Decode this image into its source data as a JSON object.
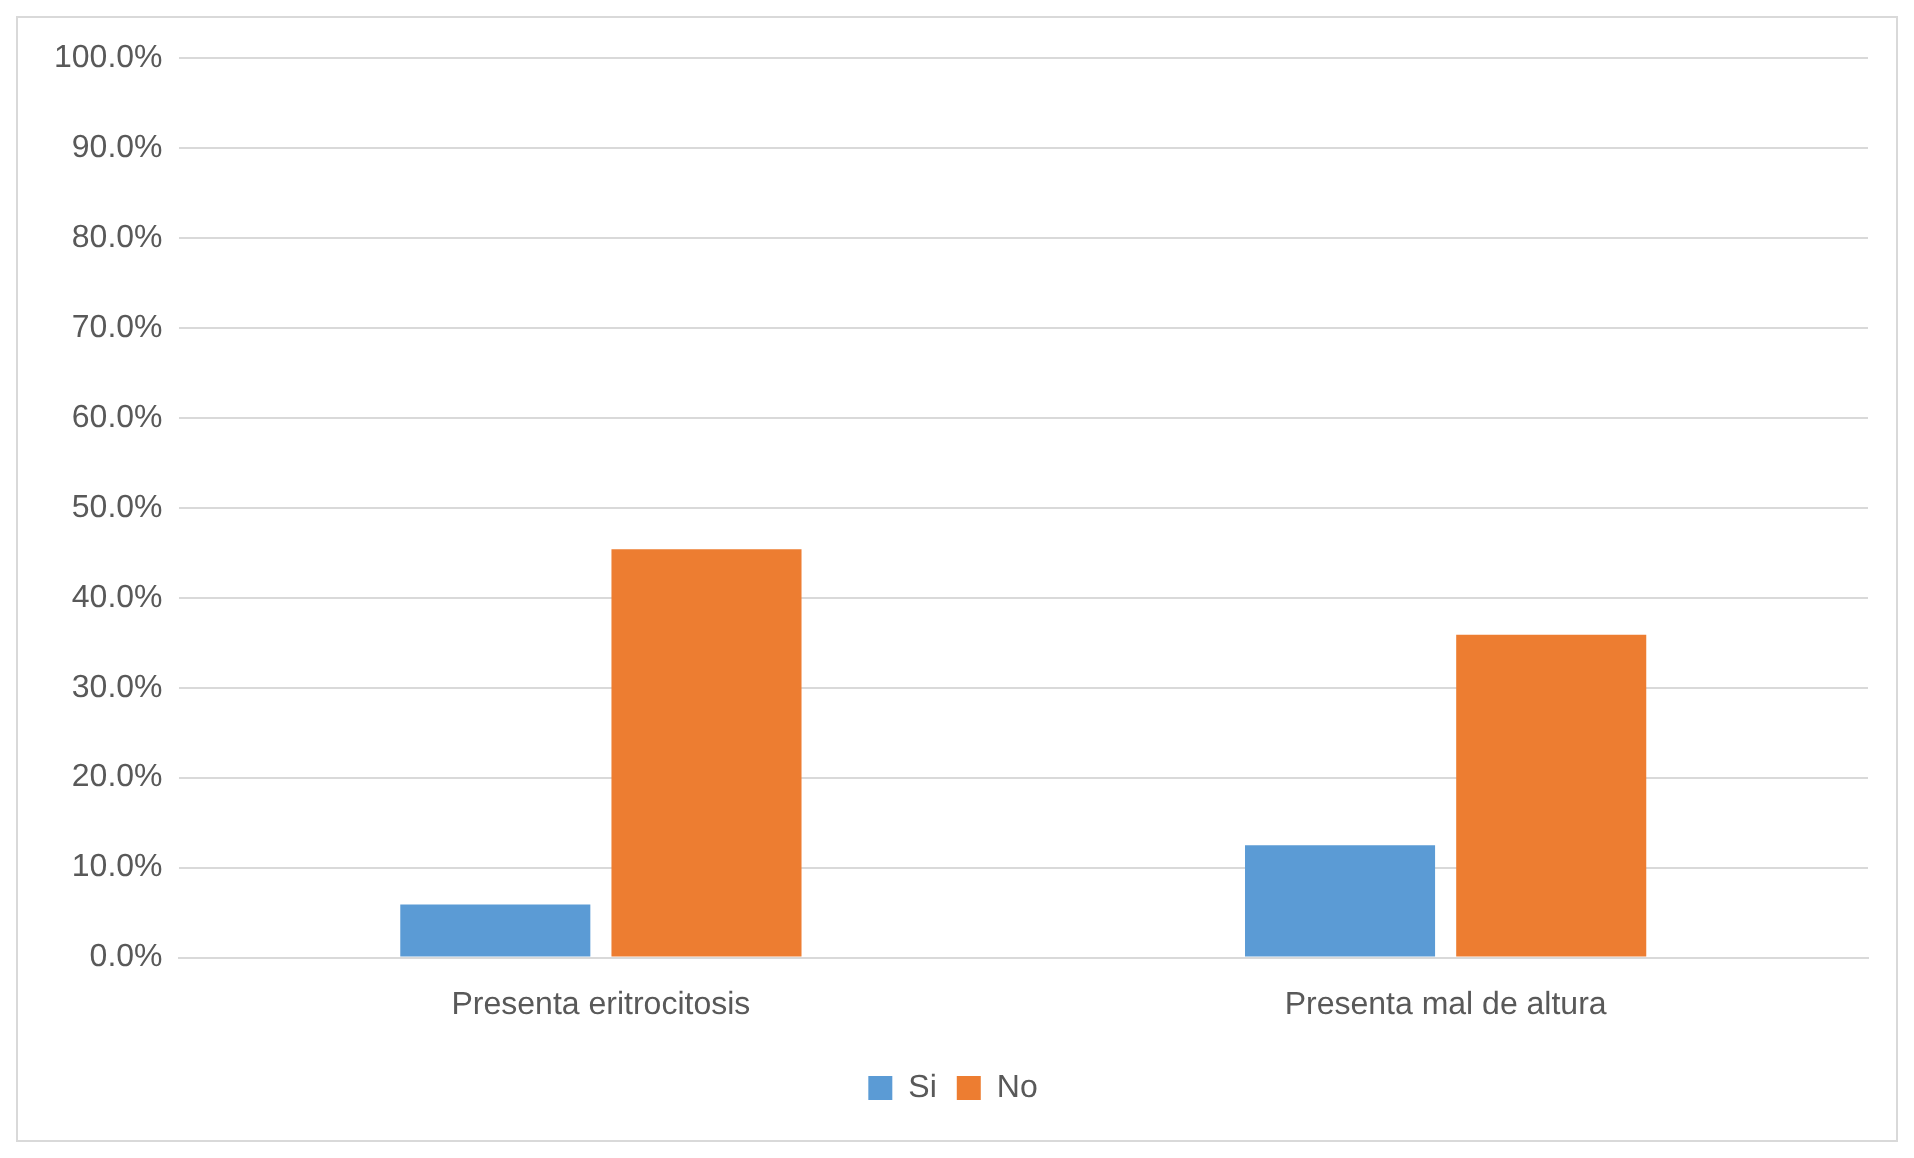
{
  "chart_data": {
    "type": "bar",
    "categories": [
      "Presenta eritrocitosis",
      "Presenta mal de altura"
    ],
    "series": [
      {
        "name": "Si",
        "color": "#5b9bd5",
        "values": [
          5.9,
          12.5
        ]
      },
      {
        "name": "No",
        "color": "#ed7d31",
        "values": [
          45.4,
          35.9
        ]
      }
    ],
    "ylim": [
      0,
      100
    ],
    "yticks": [
      {
        "value": 0,
        "label": "0.0%"
      },
      {
        "value": 10,
        "label": "10.0%"
      },
      {
        "value": 20,
        "label": "20.0%"
      },
      {
        "value": 30,
        "label": "30.0%"
      },
      {
        "value": 40,
        "label": "40.0%"
      },
      {
        "value": 50,
        "label": "50.0%"
      },
      {
        "value": 60,
        "label": "60.0%"
      },
      {
        "value": 70,
        "label": "70.0%"
      },
      {
        "value": 80,
        "label": "80.0%"
      },
      {
        "value": 90,
        "label": "90.0%"
      },
      {
        "value": 100,
        "label": "100.0%"
      }
    ],
    "grid": "y",
    "legend": "bottom"
  }
}
